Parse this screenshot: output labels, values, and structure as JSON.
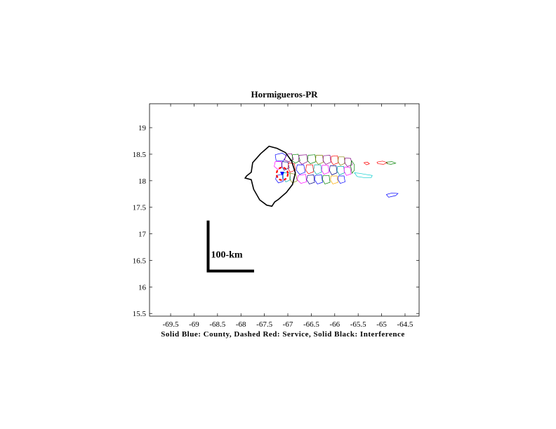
{
  "chart_data": {
    "type": "map",
    "title": "Hormigueros-PR",
    "xlabel": "Solid Blue: County, Dashed Red: Service, Solid Black: Interference",
    "xlim": [
      -69.95,
      -64.2
    ],
    "ylim": [
      15.45,
      19.45
    ],
    "x_ticks": [
      -69.5,
      -69,
      -68.5,
      -68,
      -67.5,
      -67,
      -66.5,
      -66,
      -65.5,
      -65,
      -64.5
    ],
    "y_ticks": [
      15.5,
      16,
      16.5,
      17,
      17.5,
      18,
      18.5,
      19
    ],
    "x_tick_labels": [
      "-69.5",
      "-69",
      "-68.5",
      "-68",
      "-67.5",
      "-67",
      "-66.5",
      "-66",
      "-65.5",
      "-65",
      "-64.5"
    ],
    "y_tick_labels": [
      "15.5",
      "16",
      "16.5",
      "17",
      "17.5",
      "18",
      "18.5",
      "19"
    ],
    "scale_bar": {
      "label": "100-km",
      "corner": [
        -68.7,
        16.3
      ],
      "top_lat": 17.25,
      "right_lon": -67.72
    },
    "station": {
      "lon": -67.12,
      "lat": 18.13
    },
    "service_contour": {
      "center": [
        -67.12,
        18.13
      ],
      "radius_deg": 0.12,
      "color": "#ff0000"
    },
    "county_color": "#0000ff",
    "interference_contour": [
      [
        -67.58,
        18.51
      ],
      [
        -67.4,
        18.65
      ],
      [
        -67.23,
        18.61
      ],
      [
        -67.05,
        18.53
      ],
      [
        -66.92,
        18.37
      ],
      [
        -66.84,
        18.15
      ],
      [
        -66.9,
        17.93
      ],
      [
        -67.03,
        17.78
      ],
      [
        -67.2,
        17.65
      ],
      [
        -67.28,
        17.6
      ],
      [
        -67.34,
        17.52
      ],
      [
        -67.45,
        17.54
      ],
      [
        -67.6,
        17.64
      ],
      [
        -67.73,
        17.84
      ],
      [
        -67.78,
        18.02
      ],
      [
        -67.91,
        18.05
      ],
      [
        -67.88,
        18.09
      ],
      [
        -67.78,
        18.16
      ],
      [
        -67.75,
        18.34
      ],
      [
        -67.58,
        18.51
      ]
    ],
    "municipios": [
      {
        "color": "#0000ff",
        "path": [
          [
            -67.27,
            18.49
          ],
          [
            -67.12,
            18.52
          ],
          [
            -67.03,
            18.47
          ],
          [
            -67.1,
            18.37
          ],
          [
            -67.25,
            18.38
          ],
          [
            -67.27,
            18.49
          ]
        ]
      },
      {
        "color": "#800080",
        "path": [
          [
            -67.03,
            18.5
          ],
          [
            -66.92,
            18.51
          ],
          [
            -66.88,
            18.4
          ],
          [
            -66.98,
            18.36
          ],
          [
            -67.07,
            18.39
          ],
          [
            -67.03,
            18.5
          ]
        ]
      },
      {
        "color": "#008000",
        "path": [
          [
            -66.9,
            18.49
          ],
          [
            -66.78,
            18.5
          ],
          [
            -66.74,
            18.38
          ],
          [
            -66.84,
            18.33
          ],
          [
            -66.91,
            18.38
          ],
          [
            -66.9,
            18.49
          ]
        ]
      },
      {
        "color": "#ff00ff",
        "path": [
          [
            -67.27,
            18.36
          ],
          [
            -67.14,
            18.36
          ],
          [
            -67.12,
            18.26
          ],
          [
            -67.21,
            18.21
          ],
          [
            -67.29,
            18.27
          ],
          [
            -67.27,
            18.36
          ]
        ]
      },
      {
        "color": "#000080",
        "path": [
          [
            -67.12,
            18.36
          ],
          [
            -67.0,
            18.35
          ],
          [
            -66.97,
            18.24
          ],
          [
            -67.08,
            18.2
          ],
          [
            -67.13,
            18.27
          ],
          [
            -67.12,
            18.36
          ]
        ]
      },
      {
        "color": "#ff0000",
        "path": [
          [
            -66.98,
            18.34
          ],
          [
            -66.86,
            18.32
          ],
          [
            -66.84,
            18.2
          ],
          [
            -66.95,
            18.16
          ],
          [
            -67.0,
            18.24
          ],
          [
            -66.98,
            18.34
          ]
        ]
      },
      {
        "color": "#0000ff",
        "path": [
          [
            -67.24,
            18.1
          ],
          [
            -67.12,
            18.12
          ],
          [
            -67.1,
            17.99
          ],
          [
            -67.2,
            17.96
          ],
          [
            -67.26,
            18.03
          ],
          [
            -67.24,
            18.1
          ]
        ]
      },
      {
        "color": "#00aaaa",
        "path": [
          [
            -67.09,
            18.15
          ],
          [
            -66.96,
            18.15
          ],
          [
            -66.94,
            18.02
          ],
          [
            -67.04,
            17.98
          ],
          [
            -67.1,
            18.05
          ],
          [
            -67.09,
            18.15
          ]
        ]
      },
      {
        "color": "#808000",
        "path": [
          [
            -66.95,
            18.14
          ],
          [
            -66.83,
            18.12
          ],
          [
            -66.8,
            18.0
          ],
          [
            -66.9,
            17.96
          ],
          [
            -66.96,
            18.03
          ],
          [
            -66.95,
            18.14
          ]
        ]
      },
      {
        "color": "#800080",
        "path": [
          [
            -66.76,
            18.48
          ],
          [
            -66.6,
            18.49
          ],
          [
            -66.58,
            18.36
          ],
          [
            -66.7,
            18.31
          ],
          [
            -66.77,
            18.38
          ],
          [
            -66.76,
            18.48
          ]
        ]
      },
      {
        "color": "#0000ff",
        "path": [
          [
            -66.8,
            18.3
          ],
          [
            -66.66,
            18.3
          ],
          [
            -66.63,
            18.16
          ],
          [
            -66.75,
            18.12
          ],
          [
            -66.82,
            18.2
          ],
          [
            -66.8,
            18.3
          ]
        ]
      },
      {
        "color": "#ff00ff",
        "path": [
          [
            -66.78,
            18.1
          ],
          [
            -66.62,
            18.12
          ],
          [
            -66.6,
            17.98
          ],
          [
            -66.72,
            17.95
          ],
          [
            -66.8,
            18.02
          ],
          [
            -66.78,
            18.1
          ]
        ]
      },
      {
        "color": "#008000",
        "path": [
          [
            -66.57,
            18.48
          ],
          [
            -66.42,
            18.49
          ],
          [
            -66.4,
            18.36
          ],
          [
            -66.52,
            18.32
          ],
          [
            -66.58,
            18.38
          ],
          [
            -66.57,
            18.48
          ]
        ]
      },
      {
        "color": "#ff0000",
        "path": [
          [
            -66.6,
            18.3
          ],
          [
            -66.47,
            18.3
          ],
          [
            -66.45,
            18.17
          ],
          [
            -66.56,
            18.13
          ],
          [
            -66.62,
            18.2
          ],
          [
            -66.6,
            18.3
          ]
        ]
      },
      {
        "color": "#000080",
        "path": [
          [
            -66.58,
            18.1
          ],
          [
            -66.45,
            18.11
          ],
          [
            -66.43,
            17.97
          ],
          [
            -66.54,
            17.94
          ],
          [
            -66.6,
            18.02
          ],
          [
            -66.58,
            18.1
          ]
        ]
      },
      {
        "color": "#808000",
        "path": [
          [
            -66.4,
            18.48
          ],
          [
            -66.26,
            18.48
          ],
          [
            -66.24,
            18.35
          ],
          [
            -66.35,
            18.31
          ],
          [
            -66.41,
            18.38
          ],
          [
            -66.4,
            18.48
          ]
        ]
      },
      {
        "color": "#00aaaa",
        "path": [
          [
            -66.43,
            18.3
          ],
          [
            -66.3,
            18.3
          ],
          [
            -66.28,
            18.16
          ],
          [
            -66.39,
            18.12
          ],
          [
            -66.45,
            18.2
          ],
          [
            -66.43,
            18.3
          ]
        ]
      },
      {
        "color": "#0000ff",
        "path": [
          [
            -66.42,
            18.1
          ],
          [
            -66.28,
            18.11
          ],
          [
            -66.26,
            17.97
          ],
          [
            -66.37,
            17.94
          ],
          [
            -66.43,
            18.02
          ],
          [
            -66.42,
            18.1
          ]
        ]
      },
      {
        "color": "#800080",
        "path": [
          [
            -66.24,
            18.47
          ],
          [
            -66.1,
            18.48
          ],
          [
            -66.08,
            18.35
          ],
          [
            -66.19,
            18.31
          ],
          [
            -66.25,
            18.38
          ],
          [
            -66.24,
            18.47
          ]
        ]
      },
      {
        "color": "#ff00ff",
        "path": [
          [
            -66.27,
            18.29
          ],
          [
            -66.14,
            18.29
          ],
          [
            -66.12,
            18.16
          ],
          [
            -66.23,
            18.12
          ],
          [
            -66.28,
            18.2
          ],
          [
            -66.27,
            18.29
          ]
        ]
      },
      {
        "color": "#008000",
        "path": [
          [
            -66.25,
            18.1
          ],
          [
            -66.12,
            18.1
          ],
          [
            -66.1,
            17.97
          ],
          [
            -66.21,
            17.94
          ],
          [
            -66.26,
            18.02
          ],
          [
            -66.25,
            18.1
          ]
        ]
      },
      {
        "color": "#ff0000",
        "path": [
          [
            -66.07,
            18.46
          ],
          [
            -65.94,
            18.47
          ],
          [
            -65.92,
            18.34
          ],
          [
            -66.03,
            18.3
          ],
          [
            -66.08,
            18.37
          ],
          [
            -66.07,
            18.46
          ]
        ]
      },
      {
        "color": "#000080",
        "path": [
          [
            -66.1,
            18.28
          ],
          [
            -65.97,
            18.28
          ],
          [
            -65.95,
            18.15
          ],
          [
            -66.06,
            18.11
          ],
          [
            -66.11,
            18.19
          ],
          [
            -66.1,
            18.28
          ]
        ]
      },
      {
        "color": "#ffaa00",
        "path": [
          [
            -66.08,
            18.09
          ],
          [
            -65.95,
            18.09
          ],
          [
            -65.93,
            17.97
          ],
          [
            -66.04,
            17.94
          ],
          [
            -66.09,
            18.01
          ],
          [
            -66.08,
            18.09
          ]
        ]
      },
      {
        "color": "#808000",
        "path": [
          [
            -65.92,
            18.45
          ],
          [
            -65.8,
            18.45
          ],
          [
            -65.78,
            18.33
          ],
          [
            -65.88,
            18.29
          ],
          [
            -65.93,
            18.36
          ],
          [
            -65.92,
            18.45
          ]
        ]
      },
      {
        "color": "#00aaaa",
        "path": [
          [
            -65.94,
            18.27
          ],
          [
            -65.81,
            18.27
          ],
          [
            -65.79,
            18.15
          ],
          [
            -65.9,
            18.11
          ],
          [
            -65.95,
            18.19
          ],
          [
            -65.94,
            18.27
          ]
        ]
      },
      {
        "color": "#0000ff",
        "path": [
          [
            -65.92,
            18.09
          ],
          [
            -65.8,
            18.09
          ],
          [
            -65.78,
            17.98
          ],
          [
            -65.88,
            17.95
          ],
          [
            -65.93,
            18.02
          ],
          [
            -65.92,
            18.09
          ]
        ]
      },
      {
        "color": "#800080",
        "path": [
          [
            -65.78,
            18.43
          ],
          [
            -65.66,
            18.42
          ],
          [
            -65.63,
            18.3
          ],
          [
            -65.73,
            18.27
          ],
          [
            -65.79,
            18.34
          ],
          [
            -65.78,
            18.43
          ]
        ]
      },
      {
        "color": "#ff00ff",
        "path": [
          [
            -65.79,
            18.26
          ],
          [
            -65.67,
            18.25
          ],
          [
            -65.65,
            18.13
          ],
          [
            -65.75,
            18.1
          ],
          [
            -65.8,
            18.18
          ],
          [
            -65.79,
            18.26
          ]
        ]
      },
      {
        "color": "#008000",
        "path": [
          [
            -65.64,
            18.38
          ],
          [
            -65.58,
            18.3
          ],
          [
            -65.58,
            18.2
          ],
          [
            -65.63,
            18.14
          ],
          [
            -65.66,
            18.28
          ],
          [
            -65.64,
            18.38
          ]
        ]
      },
      {
        "color": "#00cccc",
        "path": [
          [
            -65.58,
            18.15
          ],
          [
            -65.48,
            18.14
          ],
          [
            -65.35,
            18.12
          ],
          [
            -65.2,
            18.1
          ],
          [
            -65.22,
            18.06
          ],
          [
            -65.38,
            18.06
          ],
          [
            -65.52,
            18.08
          ],
          [
            -65.58,
            18.15
          ]
        ]
      },
      {
        "color": "#ff0000",
        "path": [
          [
            -65.1,
            18.35
          ],
          [
            -64.98,
            18.37
          ],
          [
            -64.88,
            18.34
          ],
          [
            -64.96,
            18.31
          ],
          [
            -65.08,
            18.32
          ],
          [
            -65.1,
            18.35
          ]
        ]
      },
      {
        "color": "#008000",
        "path": [
          [
            -64.9,
            18.35
          ],
          [
            -64.78,
            18.36
          ],
          [
            -64.7,
            18.33
          ],
          [
            -64.8,
            18.31
          ],
          [
            -64.88,
            18.32
          ],
          [
            -64.9,
            18.35
          ]
        ]
      },
      {
        "color": "#ff0000",
        "path": [
          [
            -65.38,
            18.34
          ],
          [
            -65.3,
            18.35
          ],
          [
            -65.26,
            18.32
          ],
          [
            -65.32,
            18.3
          ],
          [
            -65.38,
            18.34
          ]
        ]
      },
      {
        "color": "#0000ff",
        "path": [
          [
            -64.9,
            17.74
          ],
          [
            -64.78,
            17.77
          ],
          [
            -64.65,
            17.76
          ],
          [
            -64.7,
            17.72
          ],
          [
            -64.85,
            17.69
          ],
          [
            -64.9,
            17.74
          ]
        ]
      }
    ]
  }
}
